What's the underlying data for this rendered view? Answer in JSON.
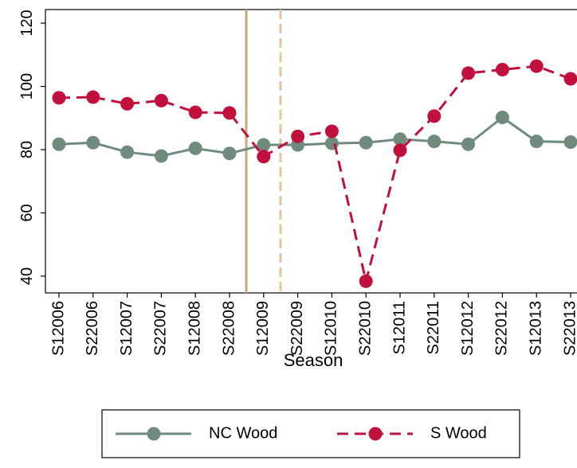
{
  "chart_data": {
    "type": "line",
    "x_label": "Season",
    "categories": [
      "S12006",
      "S22006",
      "S12007",
      "S22007",
      "S12008",
      "S22008",
      "S12009",
      "S22009",
      "S12010",
      "S22010",
      "S12011",
      "S22011",
      "S12012",
      "S22012",
      "S12013",
      "S22013"
    ],
    "series": [
      {
        "name": "NC Wood",
        "color": "#6e8b7e",
        "dash": false,
        "values": [
          81.7,
          82.2,
          79.2,
          78.0,
          80.4,
          78.8,
          81.5,
          81.5,
          82.0,
          82.2,
          83.3,
          82.6,
          81.7,
          90.2,
          82.6,
          82.4
        ]
      },
      {
        "name": "S Wood",
        "color": "#c1103c",
        "dash": true,
        "values": [
          96.4,
          96.6,
          94.5,
          95.5,
          91.8,
          91.6,
          77.8,
          84.2,
          85.8,
          38.4,
          79.8,
          90.6,
          104.2,
          105.3,
          106.4,
          102.4
        ]
      }
    ],
    "ylim": [
      34.7,
      124.3
    ],
    "yticks": [
      40,
      60,
      80,
      100,
      120
    ],
    "legend": "bottom"
  }
}
